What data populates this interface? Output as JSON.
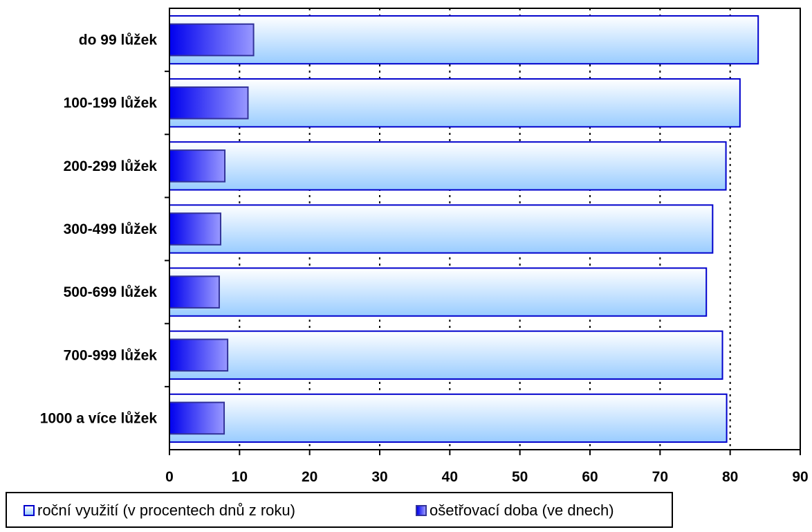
{
  "chart_data": {
    "type": "bar",
    "orientation": "horizontal",
    "categories": [
      "do 99 lůžek",
      "100-199 lůžek",
      "200-299 lůžek",
      "300-499 lůžek",
      "500-699 lůžek",
      "700-999 lůžek",
      "1000 a více lůžek"
    ],
    "series": [
      {
        "name": "roční využití (v procentech dnů z roku)",
        "values": [
          84.0,
          81.4,
          79.4,
          77.5,
          76.6,
          78.9,
          79.5
        ]
      },
      {
        "name": "ošetřovací doba (ve dnech)",
        "values": [
          12.0,
          11.2,
          7.9,
          7.3,
          7.1,
          8.3,
          7.8
        ]
      }
    ],
    "xlim": [
      0,
      90
    ],
    "xticks": [
      "0",
      "10",
      "20",
      "30",
      "40",
      "50",
      "60",
      "70",
      "80",
      "90"
    ],
    "grid": "vertical dotted",
    "legend_position": "bottom",
    "colors": {
      "series1_fill_top": "#ffffff",
      "series1_fill_bottom": "#99ccff",
      "series1_border": "#0000cc",
      "series2_fill_left": "#0000ee",
      "series2_fill_right": "#9999ff",
      "series2_border": "#333399"
    }
  }
}
